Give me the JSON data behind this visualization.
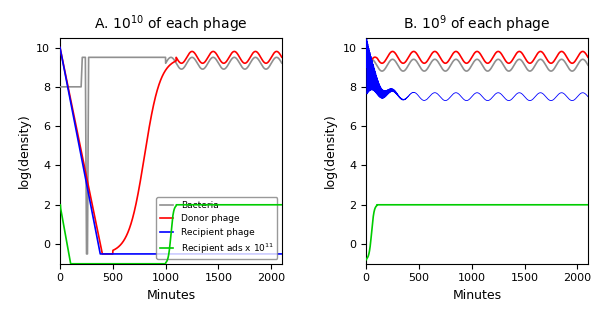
{
  "title_A": "A. 10$^{10}$ of each phage",
  "title_B": "B. 10$^{9}$ of each phage",
  "xlabel": "Minutes",
  "ylabel": "log(density)",
  "ylim": [
    -1,
    10.5
  ],
  "xlim_A": [
    0,
    2100
  ],
  "xlim_B": [
    0,
    2100
  ],
  "xticks_A": [
    0,
    500,
    1000,
    1500,
    2000
  ],
  "xticks_B": [
    0,
    500,
    1000,
    1500,
    2000
  ],
  "yticks": [
    0,
    2,
    4,
    6,
    8,
    10
  ],
  "colors": {
    "bacteria": "#909090",
    "donor": "#ff0000",
    "recipient": "#0000ff",
    "ads": "#00cc00"
  },
  "legend_labels": [
    "Bacteria",
    "Donor phage",
    "Recipient phage",
    "Recipient ads x 10$^{11}$"
  ],
  "figsize": [
    6.0,
    3.14
  ],
  "dpi": 100
}
